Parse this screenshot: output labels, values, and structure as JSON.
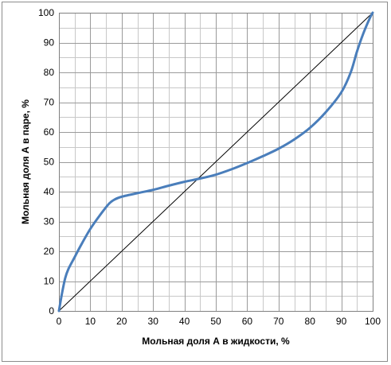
{
  "chart_data": {
    "type": "line",
    "title": "",
    "xlabel": "Мольная доля А в жидкости, %",
    "ylabel": "Мольная доля А в паре, %",
    "xlim": [
      0,
      100
    ],
    "ylim": [
      0,
      100
    ],
    "x_ticks": [
      "0",
      "10",
      "20",
      "30",
      "40",
      "50",
      "60",
      "70",
      "80",
      "90",
      "100"
    ],
    "y_ticks": [
      "0",
      "10",
      "20",
      "30",
      "40",
      "50",
      "60",
      "70",
      "80",
      "90",
      "100"
    ],
    "grid": true,
    "minor_grid_step": 5,
    "legend": "none",
    "series": [
      {
        "color": "#4a7ebb",
        "points": [
          [
            0,
            0
          ],
          [
            1,
            6
          ],
          [
            2,
            11
          ],
          [
            3,
            14
          ],
          [
            5,
            18
          ],
          [
            7,
            22
          ],
          [
            10,
            27.5
          ],
          [
            13,
            32
          ],
          [
            16,
            36
          ],
          [
            18,
            37.5
          ],
          [
            20,
            38.3
          ],
          [
            25,
            39.5
          ],
          [
            30,
            40.6
          ],
          [
            35,
            42
          ],
          [
            40,
            43.3
          ],
          [
            45,
            44.4
          ],
          [
            50,
            45.7
          ],
          [
            55,
            47.5
          ],
          [
            60,
            49.6
          ],
          [
            65,
            51.9
          ],
          [
            70,
            54.4
          ],
          [
            75,
            57.5
          ],
          [
            80,
            61.4
          ],
          [
            85,
            66.6
          ],
          [
            90,
            73.3
          ],
          [
            93,
            80
          ],
          [
            95,
            87
          ],
          [
            97,
            93
          ],
          [
            99,
            98
          ],
          [
            100,
            100
          ]
        ]
      },
      {
        "color": "#000000",
        "points": [
          [
            0,
            0
          ],
          [
            100,
            100
          ]
        ]
      }
    ]
  }
}
